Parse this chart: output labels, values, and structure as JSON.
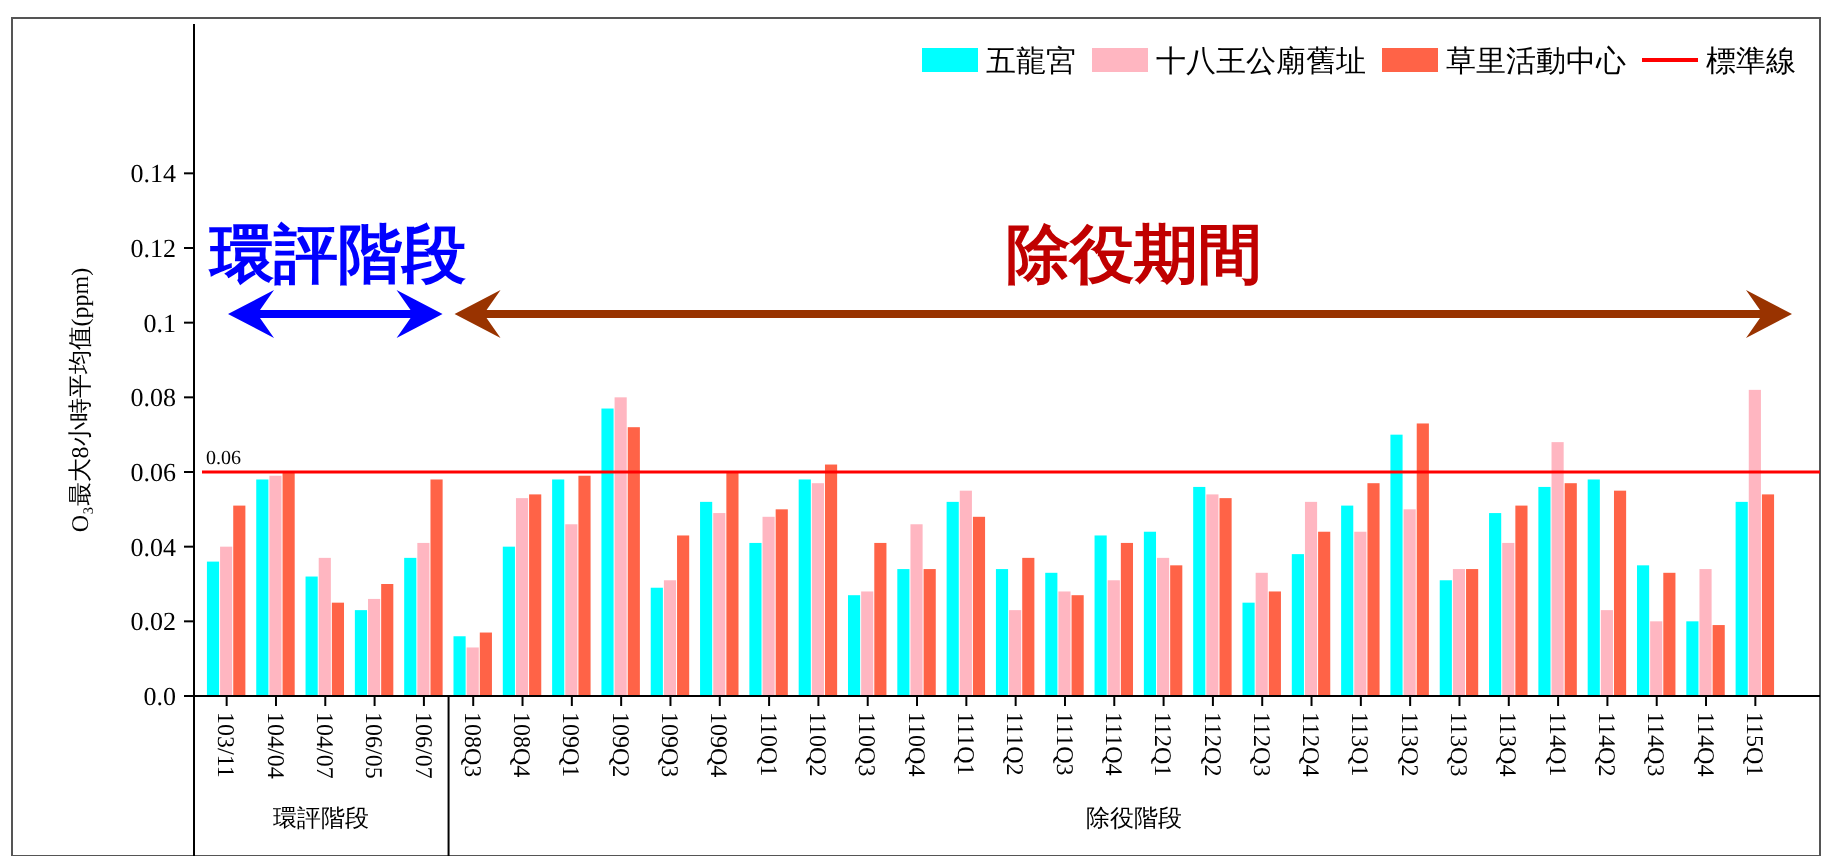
{
  "chart_data": {
    "type": "bar",
    "ylabel": "O₃最大8小時平均值(ppm)",
    "categories": [
      "103/11",
      "104/04",
      "104/07",
      "106/05",
      "106/07",
      "108Q3",
      "108Q4",
      "109Q1",
      "109Q2",
      "109Q3",
      "109Q4",
      "110Q1",
      "110Q2",
      "110Q3",
      "110Q4",
      "111Q1",
      "111Q2",
      "111Q3",
      "111Q4",
      "112Q1",
      "112Q2",
      "112Q3",
      "112Q4",
      "113Q1",
      "113Q2",
      "113Q3",
      "113Q4",
      "114Q1",
      "114Q2",
      "114Q3",
      "114Q4",
      "115Q1"
    ],
    "series": [
      {
        "name": "五龍宮",
        "color": "#00ffff",
        "values": [
          0.036,
          0.058,
          0.032,
          0.023,
          0.037,
          0.016,
          0.04,
          0.058,
          0.077,
          0.029,
          0.052,
          0.041,
          0.058,
          0.027,
          0.034,
          0.052,
          0.034,
          0.033,
          0.043,
          0.044,
          0.056,
          0.025,
          0.038,
          0.051,
          0.07,
          0.031,
          0.049,
          0.056,
          0.058,
          0.035,
          0.02,
          0.052
        ]
      },
      {
        "name": "十八王公廟舊址",
        "color": "#ffb6c1",
        "values": [
          0.04,
          0.059,
          0.037,
          0.026,
          0.041,
          0.013,
          0.053,
          0.046,
          0.08,
          0.031,
          0.049,
          0.048,
          0.057,
          0.028,
          0.046,
          0.055,
          0.023,
          0.028,
          0.031,
          0.037,
          0.054,
          0.033,
          0.052,
          0.044,
          0.05,
          0.034,
          0.041,
          0.068,
          0.023,
          0.02,
          0.034,
          0.082
        ]
      },
      {
        "name": "草里活動中心",
        "color": "#ff6347",
        "values": [
          0.051,
          0.06,
          0.025,
          0.03,
          0.058,
          0.017,
          0.054,
          0.059,
          0.072,
          0.043,
          0.06,
          0.05,
          0.062,
          0.041,
          0.034,
          0.048,
          0.037,
          0.027,
          0.041,
          0.035,
          0.053,
          0.028,
          0.044,
          0.057,
          0.073,
          0.034,
          0.051,
          0.057,
          0.055,
          0.033,
          0.019,
          0.054
        ]
      }
    ],
    "ylim": [
      0,
      0.18
    ],
    "yticks": [
      {
        "value": 0,
        "label": "0.0"
      },
      0.02,
      0.04,
      0.06,
      0.08,
      0.1,
      0.12,
      0.14
    ],
    "ref_lines": [
      {
        "axis": "y",
        "value": 0.06,
        "label": "標準線",
        "color": "#ff0000"
      }
    ],
    "annotations": [
      "環評階段",
      "除役期間",
      "環評階段",
      "除役階段",
      {
        "text": "0.06",
        "y": 0.06
      }
    ],
    "legend": "top right",
    "grid": false
  }
}
